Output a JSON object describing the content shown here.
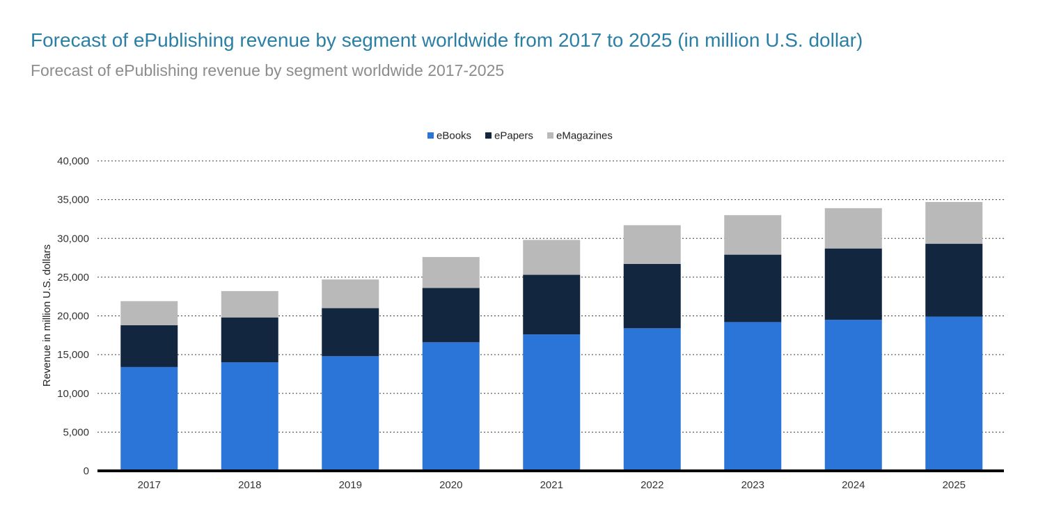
{
  "header": {
    "title": "Forecast of ePublishing revenue by segment worldwide from 2017 to 2025 (in million U.S. dollar)",
    "subtitle": "Forecast of ePublishing revenue by segment worldwide 2017-2025"
  },
  "chart_data": {
    "type": "bar",
    "stacked": true,
    "categories": [
      "2017",
      "2018",
      "2019",
      "2020",
      "2021",
      "2022",
      "2023",
      "2024",
      "2025"
    ],
    "series": [
      {
        "name": "eBooks",
        "color": "#2b75d9",
        "values": [
          13400,
          14000,
          14800,
          16600,
          17600,
          18400,
          19200,
          19500,
          19900
        ]
      },
      {
        "name": "ePapers",
        "color": "#12263f",
        "values": [
          5400,
          5800,
          6200,
          7000,
          7700,
          8300,
          8700,
          9200,
          9400
        ]
      },
      {
        "name": "eMagazines",
        "color": "#b9b9b9",
        "values": [
          3100,
          3400,
          3700,
          4000,
          4500,
          5000,
          5100,
          5200,
          5400
        ]
      }
    ],
    "ylabel": "Revenue in million U.S. dollars",
    "xlabel": "",
    "ylim": [
      0,
      40000
    ],
    "yticks": [
      0,
      5000,
      10000,
      15000,
      20000,
      25000,
      30000,
      35000,
      40000
    ],
    "ytick_labels": [
      "0",
      "5,000",
      "10,000",
      "15,000",
      "20,000",
      "25,000",
      "30,000",
      "35,000",
      "40,000"
    ],
    "grid": true,
    "legend_position": "top-center"
  }
}
